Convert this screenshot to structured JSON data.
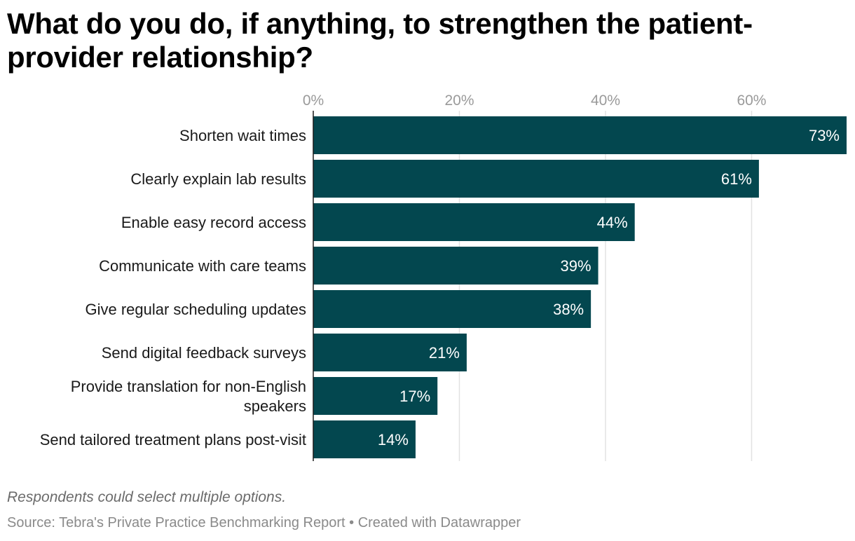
{
  "title": "What do you do, if anything, to strengthen the patient-provider relationship?",
  "note": "Respondents could select multiple options.",
  "footer": {
    "source": "Source: Tebra's Private Practice Benchmarking Report",
    "separator": "•",
    "credit": "Created with Datawrapper"
  },
  "colors": {
    "bar": "#03474f",
    "grid": "#e2e2e2",
    "axis": "#1a1a1a",
    "value_label": "#ffffff"
  },
  "chart_data": {
    "type": "bar",
    "orientation": "horizontal",
    "categories": [
      "Shorten wait times",
      "Clearly explain lab results",
      "Enable easy record access",
      "Communicate with care teams",
      "Give regular scheduling updates",
      "Send digital feedback surveys",
      "Provide translation for non-English speakers",
      "Send tailored treatment plans post-visit"
    ],
    "category_lines": [
      [
        "Shorten wait times"
      ],
      [
        "Clearly explain lab results"
      ],
      [
        "Enable easy record access"
      ],
      [
        "Communicate with care teams"
      ],
      [
        "Give regular scheduling updates"
      ],
      [
        "Send digital feedback surveys"
      ],
      [
        "Provide translation for non-English",
        "speakers"
      ],
      [
        "Send tailored treatment plans post-visit"
      ]
    ],
    "values": [
      73,
      61,
      44,
      39,
      38,
      21,
      17,
      14
    ],
    "value_labels": [
      "73%",
      "61%",
      "44%",
      "39%",
      "38%",
      "21%",
      "17%",
      "14%"
    ],
    "x_ticks": [
      0,
      20,
      40,
      60
    ],
    "x_tick_labels": [
      "0%",
      "20%",
      "40%",
      "60%"
    ],
    "xlim": [
      0,
      73
    ],
    "grid": true,
    "tick_position": "top",
    "legend": false
  }
}
